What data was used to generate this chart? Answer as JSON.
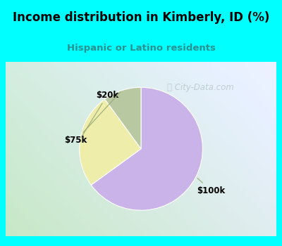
{
  "title": "Income distribution in Kimberly, ID (%)",
  "subtitle": "Hispanic or Latino residents",
  "title_color": "#000000",
  "subtitle_color": "#2a9090",
  "title_bg_color": "#00FFFF",
  "chart_bg_top_right": "#d8f5f0",
  "chart_bg_bottom_left": "#c8e8c8",
  "chart_border_color": "#00FFFF",
  "slices": [
    {
      "label": "$100k",
      "value": 65,
      "color": "#C9B3E8"
    },
    {
      "label": "$20k",
      "value": 25,
      "color": "#EEEEAA"
    },
    {
      "label": "$75k",
      "value": 10,
      "color": "#B8C8A0"
    }
  ],
  "start_angle": 90,
  "watermark": "  City-Data.com"
}
